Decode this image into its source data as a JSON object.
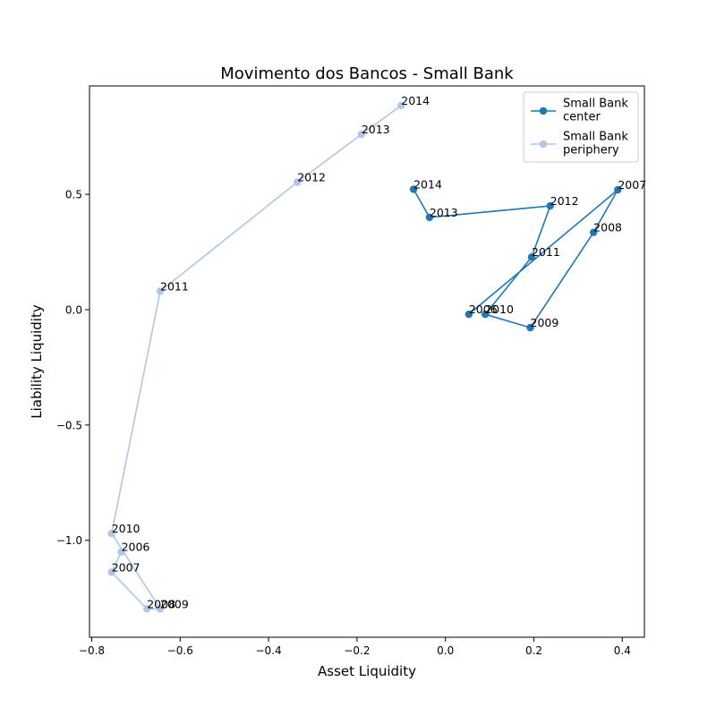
{
  "chart_data": {
    "type": "line",
    "title": "Movimento dos Bancos - Small Bank",
    "xlabel": "Asset Liquidity",
    "ylabel": "Liability Liquidity",
    "xlim": [
      -0.805,
      0.45
    ],
    "ylim": [
      -1.42,
      0.97
    ],
    "xticks": [
      -0.8,
      -0.6,
      -0.4,
      -0.2,
      0.0,
      0.2,
      0.4
    ],
    "xtick_labels": [
      "−0.8",
      "−0.6",
      "−0.4",
      "−0.2",
      "0.0",
      "0.2",
      "0.4"
    ],
    "yticks": [
      -1.0,
      -0.5,
      0.0,
      0.5
    ],
    "ytick_labels": [
      "−1.0",
      "−0.5",
      "0.0",
      "0.5"
    ],
    "grid": false,
    "legend_position": "top-right",
    "series": [
      {
        "name": "Small Bank\ncenter",
        "color": "#1f77b4",
        "points": [
          {
            "label": "2006",
            "x": 0.053,
            "y": -0.02
          },
          {
            "label": "2007",
            "x": 0.39,
            "y": 0.52
          },
          {
            "label": "2008",
            "x": 0.335,
            "y": 0.335
          },
          {
            "label": "2009",
            "x": 0.192,
            "y": -0.078
          },
          {
            "label": "2010",
            "x": 0.09,
            "y": -0.02
          },
          {
            "label": "2011",
            "x": 0.195,
            "y": 0.228
          },
          {
            "label": "2012",
            "x": 0.237,
            "y": 0.45
          },
          {
            "label": "2013",
            "x": -0.036,
            "y": 0.4
          },
          {
            "label": "2014",
            "x": -0.072,
            "y": 0.522
          }
        ]
      },
      {
        "name": "Small Bank\nperiphery",
        "color": "#aec7e8",
        "points": [
          {
            "label": "2006",
            "x": -0.733,
            "y": -1.05
          },
          {
            "label": "2007",
            "x": -0.755,
            "y": -1.138
          },
          {
            "label": "2008",
            "x": -0.675,
            "y": -1.297
          },
          {
            "label": "2009",
            "x": -0.645,
            "y": -1.297
          },
          {
            "label": "2010",
            "x": -0.755,
            "y": -0.97
          },
          {
            "label": "2011",
            "x": -0.645,
            "y": 0.08
          },
          {
            "label": "2012",
            "x": -0.335,
            "y": 0.553
          },
          {
            "label": "2013",
            "x": -0.19,
            "y": 0.76
          },
          {
            "label": "2014",
            "x": -0.1,
            "y": 0.885
          }
        ]
      }
    ]
  }
}
